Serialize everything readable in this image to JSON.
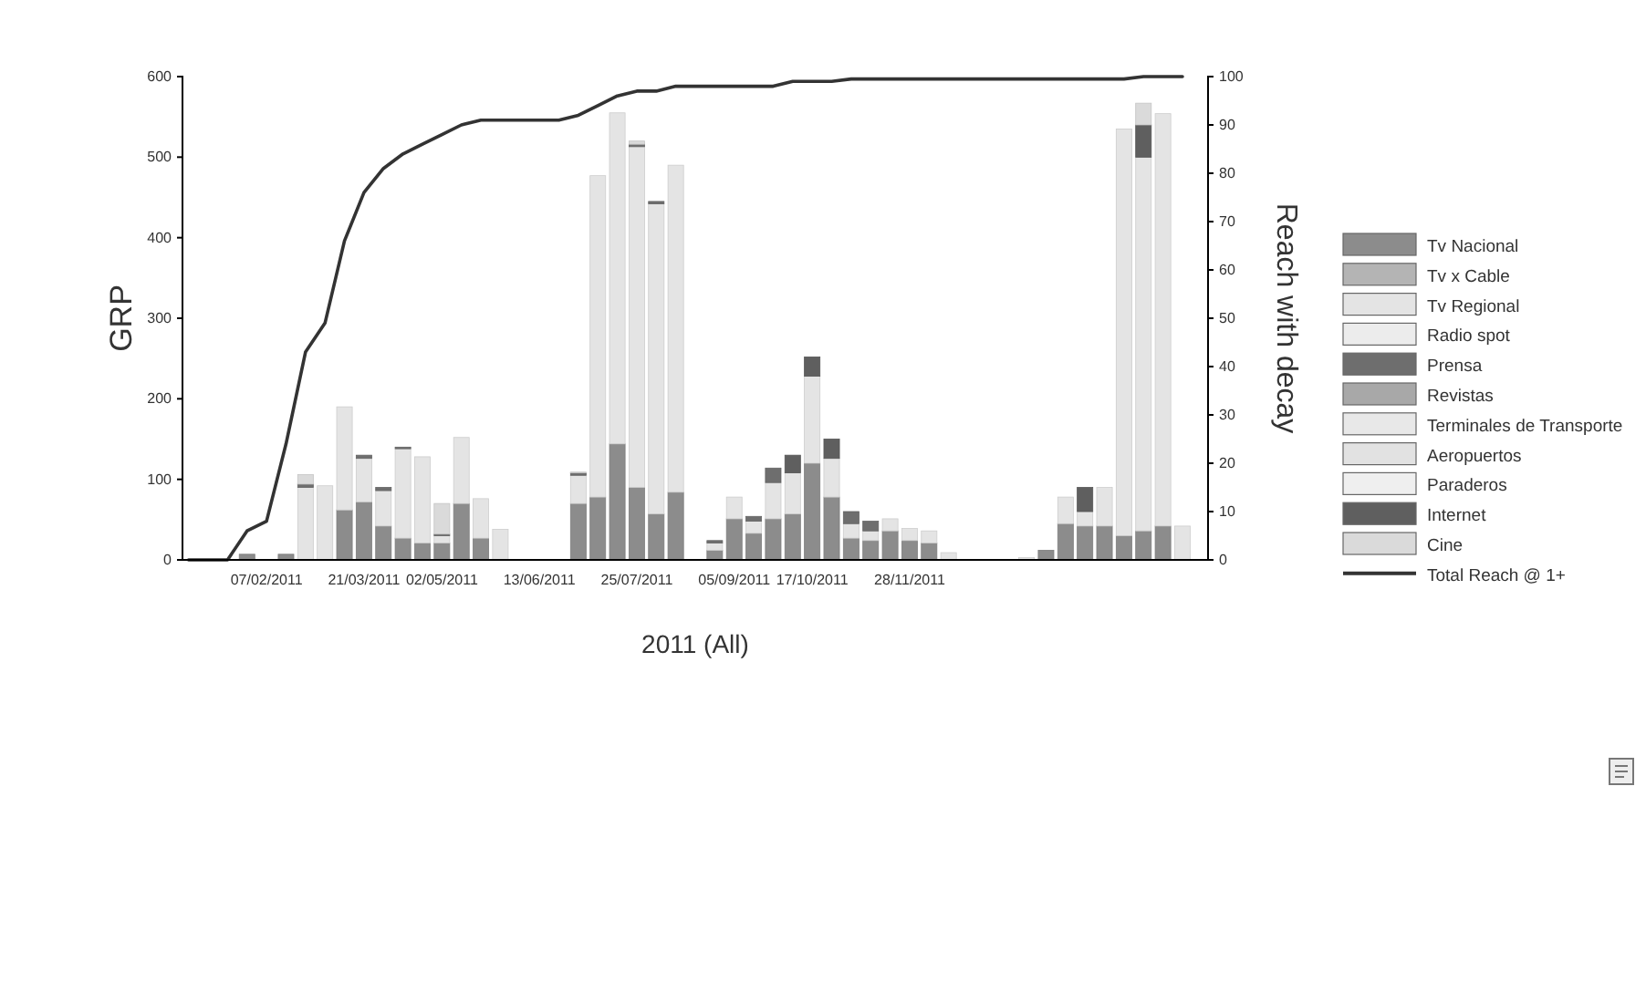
{
  "chart_data": {
    "type": "bar",
    "stacked": true,
    "xlabel": "2011 (All)",
    "ylabel": "GRP",
    "y2label": "Reach with decay",
    "categories": [
      null,
      null,
      null,
      null,
      "07/02/2011",
      null,
      null,
      null,
      null,
      "21/03/2011",
      null,
      null,
      null,
      "02/05/2011",
      null,
      null,
      null,
      null,
      "13/06/2011",
      null,
      null,
      null,
      null,
      "25/07/2011",
      null,
      null,
      null,
      null,
      "05/09/2011",
      null,
      null,
      null,
      "17/10/2011",
      null,
      null,
      null,
      null,
      "28/11/2011",
      null,
      null,
      null,
      null,
      null,
      null,
      null,
      null,
      null,
      null,
      null,
      null,
      null,
      null,
      null
    ],
    "ylim": [
      0,
      600
    ],
    "yticks": [
      0,
      100,
      200,
      300,
      400,
      500,
      600
    ],
    "y2lim": [
      0,
      100
    ],
    "y2ticks": [
      0,
      10,
      20,
      30,
      40,
      50,
      60,
      70,
      80,
      90,
      100
    ],
    "legend": "right",
    "grid": false,
    "series": [
      {
        "name": "Tv Nacional",
        "color": "#8c8c8c",
        "values": [
          null,
          null,
          null,
          7,
          null,
          7,
          null,
          null,
          62,
          72,
          42,
          27,
          21,
          21,
          70,
          27,
          null,
          null,
          null,
          null,
          70,
          78,
          144,
          90,
          57,
          84,
          null,
          12,
          51,
          33,
          51,
          57,
          120,
          78,
          27,
          24,
          36,
          24,
          21,
          null,
          null,
          null,
          null,
          null,
          12,
          45,
          42,
          42,
          30,
          36,
          42,
          null,
          null
        ]
      },
      {
        "name": "Tv x Cable",
        "color": "#b4b4b4",
        "values": [
          null,
          null,
          null,
          null,
          null,
          null,
          null,
          null,
          null,
          null,
          null,
          null,
          null,
          null,
          null,
          null,
          null,
          null,
          null,
          null,
          null,
          null,
          null,
          null,
          null,
          null,
          null,
          null,
          null,
          null,
          null,
          null,
          null,
          null,
          null,
          null,
          null,
          null,
          null,
          null,
          null,
          null,
          null,
          null,
          null,
          null,
          null,
          null,
          null,
          null,
          null,
          null,
          null
        ]
      },
      {
        "name": "Tv Regional",
        "color": "#e4e4e4",
        "values": [
          null,
          null,
          null,
          null,
          null,
          null,
          90,
          92,
          128,
          54,
          44,
          111,
          107,
          9,
          82,
          49,
          38,
          null,
          null,
          null,
          35,
          399,
          411,
          423,
          385,
          406,
          null,
          9,
          27,
          15,
          45,
          51,
          108,
          48,
          18,
          12,
          15,
          15,
          15,
          9,
          null,
          null,
          null,
          3,
          null,
          33,
          18,
          48,
          505,
          464,
          512,
          42,
          null
        ]
      },
      {
        "name": "Radio spot",
        "color": "#ececec",
        "values": [
          null,
          null,
          null,
          null,
          null,
          null,
          null,
          null,
          null,
          null,
          null,
          null,
          null,
          null,
          null,
          null,
          null,
          null,
          null,
          null,
          null,
          null,
          null,
          null,
          null,
          null,
          null,
          null,
          null,
          null,
          null,
          null,
          null,
          null,
          null,
          null,
          null,
          null,
          null,
          null,
          null,
          null,
          null,
          null,
          null,
          null,
          null,
          null,
          null,
          null,
          null,
          null,
          null
        ]
      },
      {
        "name": "Prensa",
        "color": "#6e6e6e",
        "values": [
          null,
          null,
          null,
          null,
          null,
          null,
          4,
          null,
          null,
          4,
          4,
          2,
          null,
          2,
          null,
          null,
          null,
          null,
          null,
          null,
          3,
          null,
          null,
          3,
          3,
          null,
          null,
          3,
          null,
          6,
          18,
          null,
          null,
          null,
          15,
          12,
          null,
          null,
          null,
          null,
          null,
          null,
          null,
          null,
          null,
          null,
          null,
          null,
          null,
          null,
          null,
          null,
          null
        ]
      },
      {
        "name": "Revistas",
        "color": "#a8a8a8",
        "values": [
          null,
          null,
          null,
          null,
          null,
          null,
          null,
          null,
          null,
          null,
          null,
          null,
          null,
          null,
          null,
          null,
          null,
          null,
          null,
          null,
          null,
          null,
          null,
          null,
          null,
          null,
          null,
          null,
          null,
          null,
          null,
          null,
          null,
          null,
          null,
          null,
          null,
          null,
          null,
          null,
          null,
          null,
          null,
          null,
          null,
          null,
          null,
          null,
          null,
          null,
          null,
          null,
          null
        ]
      },
      {
        "name": "Terminales de Transporte",
        "color": "#e8e8e8",
        "values": [
          null,
          null,
          null,
          null,
          null,
          null,
          null,
          null,
          null,
          null,
          null,
          null,
          null,
          null,
          null,
          null,
          null,
          null,
          null,
          null,
          null,
          null,
          null,
          null,
          null,
          null,
          null,
          null,
          null,
          null,
          null,
          null,
          null,
          null,
          null,
          null,
          null,
          null,
          null,
          null,
          null,
          null,
          null,
          null,
          null,
          null,
          null,
          null,
          null,
          null,
          null,
          null,
          null
        ]
      },
      {
        "name": "Aeropuertos",
        "color": "#e2e2e2",
        "values": [
          null,
          null,
          null,
          null,
          null,
          null,
          null,
          null,
          null,
          null,
          null,
          null,
          null,
          null,
          null,
          null,
          null,
          null,
          null,
          null,
          null,
          null,
          null,
          null,
          null,
          null,
          null,
          null,
          null,
          null,
          null,
          null,
          null,
          null,
          null,
          null,
          null,
          null,
          null,
          null,
          null,
          null,
          null,
          null,
          null,
          null,
          null,
          null,
          null,
          null,
          null,
          null,
          null
        ]
      },
      {
        "name": "Paraderos",
        "color": "#efefef",
        "values": [
          null,
          null,
          null,
          null,
          null,
          null,
          null,
          null,
          null,
          null,
          null,
          null,
          null,
          null,
          null,
          null,
          null,
          null,
          null,
          null,
          null,
          null,
          null,
          null,
          null,
          null,
          null,
          null,
          null,
          null,
          null,
          null,
          null,
          null,
          null,
          null,
          null,
          null,
          null,
          null,
          null,
          null,
          null,
          null,
          null,
          null,
          null,
          null,
          null,
          null,
          null,
          null,
          null
        ]
      },
      {
        "name": "Internet",
        "color": "#5f5f5f",
        "values": [
          null,
          null,
          null,
          null,
          null,
          null,
          null,
          null,
          null,
          null,
          null,
          null,
          null,
          null,
          null,
          null,
          null,
          null,
          null,
          null,
          null,
          null,
          null,
          null,
          null,
          null,
          null,
          null,
          null,
          null,
          null,
          22,
          24,
          24,
          null,
          null,
          null,
          null,
          null,
          null,
          null,
          null,
          null,
          null,
          null,
          null,
          30,
          null,
          null,
          40,
          null,
          null,
          null
        ]
      },
      {
        "name": "Cine",
        "color": "#dadada",
        "values": [
          null,
          null,
          null,
          null,
          null,
          null,
          12,
          null,
          null,
          null,
          null,
          null,
          null,
          38,
          null,
          null,
          null,
          null,
          null,
          null,
          1,
          null,
          null,
          4,
          null,
          null,
          null,
          null,
          null,
          null,
          null,
          null,
          null,
          null,
          null,
          null,
          null,
          null,
          null,
          null,
          null,
          null,
          null,
          null,
          null,
          null,
          null,
          null,
          null,
          27,
          null,
          null,
          null
        ]
      },
      {
        "name": "Total Reach @ 1+",
        "type": "line",
        "axis": "y2",
        "color": "#333333",
        "values": [
          0,
          0,
          0,
          6,
          8,
          24,
          43,
          49,
          66,
          76,
          81,
          84,
          86,
          88,
          90,
          91,
          91,
          91,
          91,
          91,
          92,
          94,
          96,
          97,
          97,
          98,
          98,
          98,
          98,
          98,
          98,
          99,
          99,
          99,
          99.5,
          99.5,
          99.5,
          99.5,
          99.5,
          99.5,
          99.5,
          99.5,
          99.5,
          99.5,
          99.5,
          99.5,
          99.5,
          99.5,
          99.5,
          100,
          100,
          100,
          null
        ]
      }
    ]
  }
}
